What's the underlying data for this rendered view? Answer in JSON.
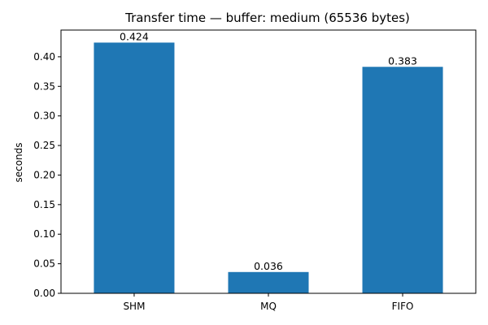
{
  "chart_data": {
    "type": "bar",
    "title": "Transfer time — buffer: medium (65536 bytes)",
    "xlabel": "",
    "ylabel": "seconds",
    "categories": [
      "SHM",
      "MQ",
      "FIFO"
    ],
    "values": [
      0.424,
      0.036,
      0.383
    ],
    "data_labels": [
      "0.424",
      "0.036",
      "0.383"
    ],
    "ylim": [
      0,
      0.4452
    ],
    "yticks": [
      0.0,
      0.05,
      0.1,
      0.15,
      0.2,
      0.25,
      0.3,
      0.35,
      0.4
    ],
    "ytick_labels": [
      "0.00",
      "0.05",
      "0.10",
      "0.15",
      "0.20",
      "0.25",
      "0.30",
      "0.35",
      "0.40"
    ],
    "bar_color": "#1f77b4",
    "grid": false,
    "legend": "none"
  }
}
